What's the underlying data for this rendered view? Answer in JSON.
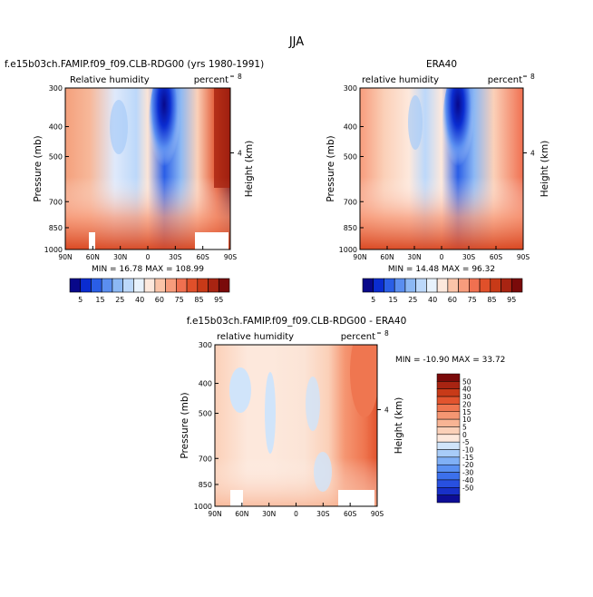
{
  "page_title": "JJA",
  "colors": {
    "abs_scale": [
      "#08088a",
      "#0a2cd0",
      "#2a5ee6",
      "#5a8ef0",
      "#8cb8f4",
      "#bcd8fa",
      "#e8f2fc",
      "#fde8dc",
      "#fbc4a8",
      "#f79c7c",
      "#f07050",
      "#e0502a",
      "#c83a18",
      "#a82412",
      "#7a0a0a"
    ],
    "diff_scale": [
      "#0d0d96",
      "#1830c8",
      "#2850e0",
      "#3c70ec",
      "#5a90f2",
      "#80b0f6",
      "#a8ccf8",
      "#d0e4fa",
      "#fde8dc",
      "#fbd0b8",
      "#f8b494",
      "#f59672",
      "#ef7650",
      "#e2542e",
      "#c83a18",
      "#a82412",
      "#7a0a0a"
    ]
  },
  "panels": {
    "model": {
      "title": "f.e15b03ch.FAMIP.f09_f09.CLB-RDG00 (yrs 1980-1991)",
      "left_label": "Relative humidity",
      "right_label": "percent",
      "ylabel": "Pressure (mb)",
      "y2label": "Height (km)",
      "stats": "MIN =   16.78   MAX =  108.99"
    },
    "obs": {
      "title": "ERA40",
      "left_label": "relative humidity",
      "right_label": "percent",
      "ylabel": "Pressure (mb)",
      "y2label": "Height (km)",
      "stats": "MIN =   14.48   MAX =   96.32"
    },
    "diff": {
      "title": "f.e15b03ch.FAMIP.f09_f09.CLB-RDG00 - ERA40",
      "left_label": "relative humidity",
      "right_label": "percent",
      "ylabel": "Pressure (mb)",
      "y2label": "Height (km)",
      "stats": "MIN = -10.90   MAX =  33.72"
    }
  },
  "chart_data": [
    {
      "type": "heatmap",
      "title": "f.e15b03ch.FAMIP.f09_f09.CLB-RDG00 (yrs 1980-1991)",
      "xlabel": "",
      "ylabel": "Pressure (mb)",
      "y2label": "Height (km)",
      "x_ticks": [
        "90N",
        "60N",
        "30N",
        "0",
        "30S",
        "60S",
        "90S"
      ],
      "y_ticks": [
        "300",
        "400",
        "500",
        "700",
        "850",
        "1000"
      ],
      "y2_ticks": [
        "8",
        "4"
      ],
      "ylim": [
        1000,
        300
      ],
      "min": 16.78,
      "max": 108.99,
      "colorbar_levels": [
        "5",
        "15",
        "25",
        "40",
        "60",
        "75",
        "85",
        "95"
      ]
    },
    {
      "type": "heatmap",
      "title": "ERA40",
      "xlabel": "",
      "ylabel": "Pressure (mb)",
      "y2label": "Height (km)",
      "x_ticks": [
        "90N",
        "60N",
        "30N",
        "0",
        "30S",
        "60S",
        "90S"
      ],
      "y_ticks": [
        "300",
        "400",
        "500",
        "700",
        "850",
        "1000"
      ],
      "y2_ticks": [
        "8",
        "4"
      ],
      "ylim": [
        1000,
        300
      ],
      "min": 14.48,
      "max": 96.32,
      "colorbar_levels": [
        "5",
        "15",
        "25",
        "40",
        "60",
        "75",
        "85",
        "95"
      ]
    },
    {
      "type": "heatmap",
      "title": "f.e15b03ch.FAMIP.f09_f09.CLB-RDG00 - ERA40",
      "xlabel": "",
      "ylabel": "Pressure (mb)",
      "y2label": "Height (km)",
      "x_ticks": [
        "90N",
        "60N",
        "30N",
        "0",
        "30S",
        "60S",
        "90S"
      ],
      "y_ticks": [
        "300",
        "400",
        "500",
        "700",
        "850",
        "1000"
      ],
      "y2_ticks": [
        "8",
        "4"
      ],
      "ylim": [
        1000,
        300
      ],
      "min": -10.9,
      "max": 33.72,
      "colorbar_levels": [
        "50",
        "40",
        "30",
        "20",
        "15",
        "10",
        "5",
        "0",
        "-5",
        "-10",
        "-15",
        "-20",
        "-30",
        "-40",
        "-50"
      ]
    }
  ]
}
